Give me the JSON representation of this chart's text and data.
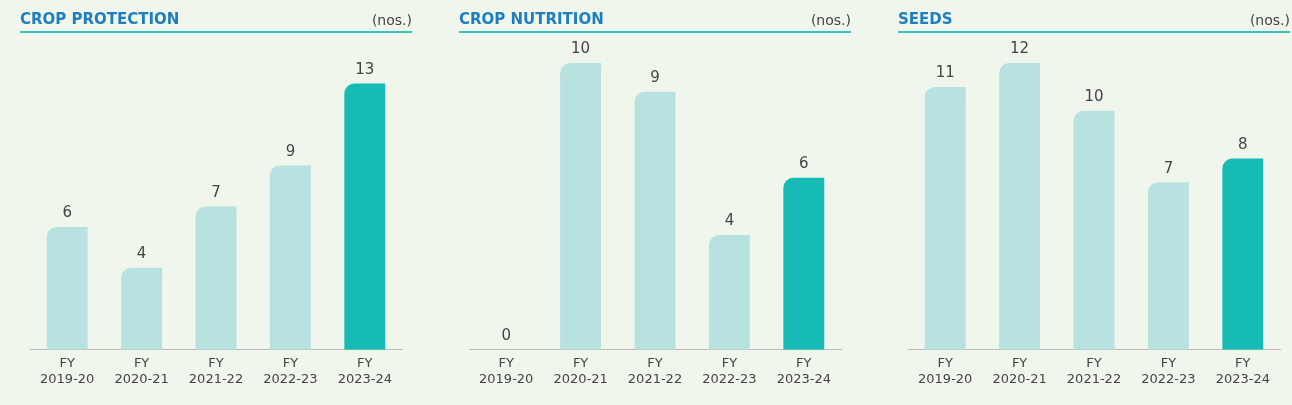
{
  "chart_data": [
    {
      "type": "bar",
      "title": "CROP PROTECTION",
      "subtitle": "(nos.)",
      "categories": [
        "FY 2019-20",
        "FY 2020-21",
        "FY 2021-22",
        "FY 2022-23",
        "FY 2023-24"
      ],
      "values": [
        6,
        4,
        7,
        9,
        13
      ],
      "colors": [
        "#b8e2e0",
        "#b8e2e0",
        "#b8e2e0",
        "#b8e2e0",
        "#17bbb5"
      ],
      "data_labels": true
    },
    {
      "type": "bar",
      "title": "CROP NUTRITION",
      "subtitle": "(nos.)",
      "categories": [
        "FY 2019-20",
        "FY 2020-21",
        "FY 2021-22",
        "FY 2022-23",
        "FY 2023-24"
      ],
      "values": [
        0,
        10,
        9,
        4,
        6
      ],
      "colors": [
        "#b8e2e0",
        "#b8e2e0",
        "#b8e2e0",
        "#b8e2e0",
        "#17bbb5"
      ],
      "data_labels": true
    },
    {
      "type": "bar",
      "title": "SEEDS",
      "subtitle": "(nos.)",
      "categories": [
        "FY 2019-20",
        "FY 2020-21",
        "FY 2021-22",
        "FY 2022-23",
        "FY 2023-24"
      ],
      "values": [
        11,
        12,
        10,
        7,
        8
      ],
      "colors": [
        "#b8e2e0",
        "#b8e2e0",
        "#b8e2e0",
        "#b8e2e0",
        "#17bbb5"
      ],
      "data_labels": true
    }
  ]
}
